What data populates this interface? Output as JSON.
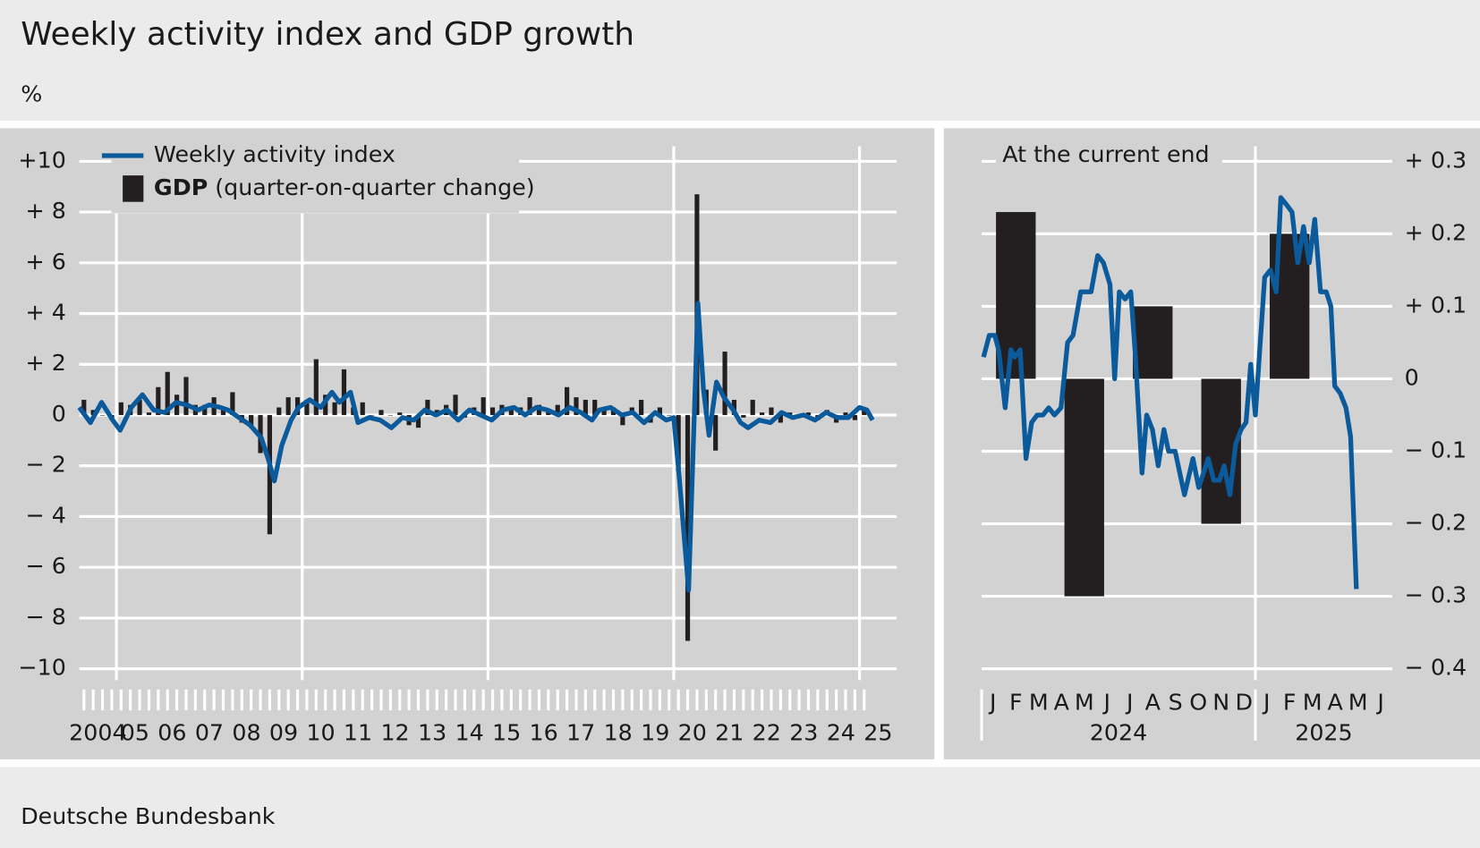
{
  "title": "Weekly activity index and GDP growth",
  "unit": "%",
  "source": "Deutsche Bundesbank",
  "chart_data": [
    {
      "type": "combo",
      "y_axis_side": "left",
      "legend": "top-left",
      "xlim": [
        2004,
        2026
      ],
      "ylim": [
        -10,
        10
      ],
      "xticks": [
        {
          "value": 2004.5,
          "label": "2004"
        },
        {
          "value": 2005.5,
          "label": "05"
        },
        {
          "value": 2006.5,
          "label": "06"
        },
        {
          "value": 2007.5,
          "label": "07"
        },
        {
          "value": 2008.5,
          "label": "08"
        },
        {
          "value": 2009.5,
          "label": "09"
        },
        {
          "value": 2010.5,
          "label": "10"
        },
        {
          "value": 2011.5,
          "label": "11"
        },
        {
          "value": 2012.5,
          "label": "12"
        },
        {
          "value": 2013.5,
          "label": "13"
        },
        {
          "value": 2014.5,
          "label": "14"
        },
        {
          "value": 2015.5,
          "label": "15"
        },
        {
          "value": 2016.5,
          "label": "16"
        },
        {
          "value": 2017.5,
          "label": "17"
        },
        {
          "value": 2018.5,
          "label": "18"
        },
        {
          "value": 2019.5,
          "label": "19"
        },
        {
          "value": 2020.5,
          "label": "20"
        },
        {
          "value": 2021.5,
          "label": "21"
        },
        {
          "value": 2022.5,
          "label": "22"
        },
        {
          "value": 2023.5,
          "label": "23"
        },
        {
          "value": 2024.5,
          "label": "24"
        },
        {
          "value": 2025.5,
          "label": "25"
        }
      ],
      "xgrid": [
        2005,
        2010,
        2015,
        2020,
        2025
      ],
      "yticks": [
        {
          "value": 10,
          "label": "+10"
        },
        {
          "value": 8,
          "label": "+ 8"
        },
        {
          "value": 6,
          "label": "+ 6"
        },
        {
          "value": 4,
          "label": "+ 4"
        },
        {
          "value": 2,
          "label": "+ 2"
        },
        0,
        {
          "value": -2,
          "label": "− 2"
        },
        {
          "value": -4,
          "label": "− 4"
        },
        {
          "value": -6,
          "label": "− 6"
        },
        {
          "value": -8,
          "label": "− 8"
        },
        {
          "value": -10,
          "label": "−10"
        }
      ],
      "grid": true,
      "series": [
        {
          "name": "GDP (quarter-on-quarter change)",
          "type": "bar",
          "color": "#231f20",
          "x": [
            2004.125,
            2004.375,
            2004.625,
            2004.875,
            2005.125,
            2005.375,
            2005.625,
            2005.875,
            2006.125,
            2006.375,
            2006.625,
            2006.875,
            2007.125,
            2007.375,
            2007.625,
            2007.875,
            2008.125,
            2008.375,
            2008.625,
            2008.875,
            2009.125,
            2009.375,
            2009.625,
            2009.875,
            2010.125,
            2010.375,
            2010.625,
            2010.875,
            2011.125,
            2011.375,
            2011.625,
            2011.875,
            2012.125,
            2012.375,
            2012.625,
            2012.875,
            2013.125,
            2013.375,
            2013.625,
            2013.875,
            2014.125,
            2014.375,
            2014.625,
            2014.875,
            2015.125,
            2015.375,
            2015.625,
            2015.875,
            2016.125,
            2016.375,
            2016.625,
            2016.875,
            2017.125,
            2017.375,
            2017.625,
            2017.875,
            2018.125,
            2018.375,
            2018.625,
            2018.875,
            2019.125,
            2019.375,
            2019.625,
            2019.875,
            2020.125,
            2020.375,
            2020.625,
            2020.875,
            2021.125,
            2021.375,
            2021.625,
            2021.875,
            2022.125,
            2022.375,
            2022.625,
            2022.875,
            2023.125,
            2023.375,
            2023.625,
            2023.875,
            2024.125,
            2024.375,
            2024.625,
            2024.875,
            2025.125
          ],
          "values": [
            0.6,
            0.2,
            0.0,
            -0.2,
            0.5,
            0.4,
            0.6,
            0.1,
            1.1,
            1.7,
            0.8,
            1.5,
            0.4,
            0.4,
            0.7,
            0.3,
            0.9,
            -0.3,
            -0.5,
            -1.5,
            -4.7,
            0.3,
            0.7,
            0.7,
            0.6,
            2.2,
            0.8,
            0.5,
            1.8,
            0.3,
            0.5,
            0.0,
            0.2,
            0.0,
            0.1,
            -0.4,
            -0.5,
            0.6,
            0.2,
            0.4,
            0.8,
            -0.1,
            0.3,
            0.7,
            0.3,
            0.4,
            0.3,
            0.3,
            0.7,
            0.4,
            0.2,
            0.4,
            1.1,
            0.7,
            0.6,
            0.6,
            0.3,
            0.3,
            -0.4,
            0.3,
            0.6,
            -0.3,
            0.3,
            0.0,
            -2.2,
            -8.9,
            8.7,
            1.0,
            -1.4,
            2.5,
            0.6,
            -0.1,
            0.6,
            0.1,
            0.3,
            -0.3,
            0.1,
            0.0,
            0.1,
            -0.2,
            0.2,
            -0.3,
            0.1,
            -0.2,
            0.3
          ]
        },
        {
          "name": "Weekly activity index",
          "type": "line",
          "color": "#0a5a9c",
          "x": [
            2004.0,
            2004.3,
            2004.6,
            2004.9,
            2005.1,
            2005.4,
            2005.7,
            2006.0,
            2006.3,
            2006.6,
            2006.9,
            2007.2,
            2007.5,
            2007.8,
            2008.0,
            2008.3,
            2008.6,
            2008.9,
            2009.1,
            2009.25,
            2009.45,
            2009.7,
            2009.9,
            2010.2,
            2010.5,
            2010.8,
            2011.0,
            2011.3,
            2011.5,
            2011.8,
            2012.1,
            2012.4,
            2012.7,
            2013.0,
            2013.3,
            2013.6,
            2013.9,
            2014.2,
            2014.5,
            2014.8,
            2015.1,
            2015.4,
            2015.7,
            2016.0,
            2016.3,
            2016.6,
            2016.9,
            2017.2,
            2017.5,
            2017.8,
            2018.0,
            2018.3,
            2018.6,
            2018.9,
            2019.2,
            2019.5,
            2019.8,
            2020.0,
            2020.15,
            2020.4,
            2020.65,
            2020.8,
            2020.95,
            2021.15,
            2021.35,
            2021.6,
            2021.8,
            2022.0,
            2022.3,
            2022.6,
            2022.9,
            2023.2,
            2023.5,
            2023.8,
            2024.1,
            2024.4,
            2024.7,
            2025.0,
            2025.2,
            2025.35
          ],
          "values": [
            0.3,
            -0.3,
            0.5,
            -0.2,
            -0.6,
            0.3,
            0.8,
            0.2,
            0.1,
            0.5,
            0.4,
            0.2,
            0.4,
            0.3,
            0.2,
            -0.1,
            -0.4,
            -0.9,
            -1.8,
            -2.6,
            -1.2,
            -0.2,
            0.3,
            0.6,
            0.3,
            0.9,
            0.5,
            0.9,
            -0.3,
            -0.1,
            -0.2,
            -0.5,
            -0.1,
            -0.2,
            0.2,
            0.0,
            0.2,
            -0.2,
            0.2,
            0.0,
            -0.2,
            0.2,
            0.3,
            0.0,
            0.3,
            0.2,
            0.0,
            0.3,
            0.1,
            -0.2,
            0.2,
            0.3,
            0.0,
            0.1,
            -0.3,
            0.1,
            -0.2,
            -0.1,
            -2.5,
            -6.9,
            4.4,
            1.0,
            -0.8,
            1.3,
            0.7,
            0.2,
            -0.3,
            -0.5,
            -0.2,
            -0.3,
            0.1,
            -0.1,
            0.0,
            -0.2,
            0.1,
            -0.1,
            -0.1,
            0.3,
            0.2,
            -0.2
          ]
        }
      ]
    },
    {
      "type": "combo",
      "y_axis_side": "right",
      "title": "At the current end",
      "xlim": [
        2024,
        2025.5
      ],
      "ylim": [
        -0.4,
        0.3
      ],
      "xticks": [
        {
          "value": 2024.0417,
          "label": "J"
        },
        {
          "value": 2024.125,
          "label": "F"
        },
        {
          "value": 2024.2083,
          "label": "M"
        },
        {
          "value": 2024.2917,
          "label": "A"
        },
        {
          "value": 2024.375,
          "label": "M"
        },
        {
          "value": 2024.4583,
          "label": "J"
        },
        {
          "value": 2024.5417,
          "label": "J"
        },
        {
          "value": 2024.625,
          "label": "A"
        },
        {
          "value": 2024.7083,
          "label": "S"
        },
        {
          "value": 2024.7917,
          "label": "O"
        },
        {
          "value": 2024.875,
          "label": "N"
        },
        {
          "value": 2024.9583,
          "label": "D"
        },
        {
          "value": 2025.0417,
          "label": "J"
        },
        {
          "value": 2025.125,
          "label": "F"
        },
        {
          "value": 2025.2083,
          "label": "M"
        },
        {
          "value": 2025.2917,
          "label": "A"
        },
        {
          "value": 2025.375,
          "label": "M"
        },
        {
          "value": 2025.4583,
          "label": "J"
        }
      ],
      "xgroups": [
        {
          "value": 2024.5,
          "label": "2024"
        },
        {
          "value": 2025.25,
          "label": "2025"
        }
      ],
      "xgrid": [
        2025
      ],
      "yticks": [
        {
          "value": 0.3,
          "label": "+ 0.3"
        },
        {
          "value": 0.2,
          "label": "+ 0.2"
        },
        {
          "value": 0.1,
          "label": "+ 0.1"
        },
        0,
        {
          "value": -0.1,
          "label": "− 0.1"
        },
        {
          "value": -0.2,
          "label": "− 0.2"
        },
        {
          "value": -0.3,
          "label": "− 0.3"
        },
        {
          "value": -0.4,
          "label": "− 0.4"
        }
      ],
      "grid": true,
      "series": [
        {
          "name": "GDP (quarter-on-quarter change)",
          "type": "bar",
          "color": "#231f20",
          "x": [
            2024.125,
            2024.375,
            2024.625,
            2024.875,
            2025.125
          ],
          "values": [
            0.23,
            -0.3,
            0.1,
            -0.2,
            0.2
          ]
        },
        {
          "name": "Weekly activity index",
          "type": "line",
          "color": "#0a5a9c",
          "x": [
            2024.007,
            2024.028,
            2024.048,
            2024.062,
            2024.086,
            2024.107,
            2024.121,
            2024.141,
            2024.162,
            2024.183,
            2024.203,
            2024.224,
            2024.245,
            2024.266,
            2024.29,
            2024.314,
            2024.334,
            2024.362,
            2024.4,
            2024.424,
            2024.445,
            2024.469,
            2024.486,
            2024.503,
            2024.524,
            2024.545,
            2024.562,
            2024.586,
            2024.603,
            2024.624,
            2024.645,
            2024.666,
            2024.683,
            2024.707,
            2024.741,
            2024.772,
            2024.793,
            2024.828,
            2024.848,
            2024.869,
            2024.886,
            2024.907,
            2024.928,
            2024.948,
            2024.966,
            2024.983,
            2025.0,
            2025.034,
            2025.055,
            2025.076,
            2025.093,
            2025.114,
            2025.134,
            2025.155,
            2025.176,
            2025.197,
            2025.217,
            2025.238,
            2025.259,
            2025.276,
            2025.29,
            2025.31,
            2025.331,
            2025.348,
            2025.369
          ],
          "values": [
            0.03,
            0.06,
            0.06,
            0.04,
            -0.04,
            0.04,
            0.03,
            0.04,
            -0.11,
            -0.06,
            -0.05,
            -0.05,
            -0.04,
            -0.05,
            -0.04,
            0.05,
            0.06,
            0.12,
            0.12,
            0.17,
            0.16,
            0.13,
            0.0,
            0.12,
            0.11,
            0.12,
            0.03,
            -0.13,
            -0.05,
            -0.07,
            -0.12,
            -0.07,
            -0.1,
            -0.1,
            -0.16,
            -0.11,
            -0.15,
            -0.11,
            -0.14,
            -0.14,
            -0.12,
            -0.16,
            -0.09,
            -0.07,
            -0.06,
            0.02,
            -0.05,
            0.14,
            0.15,
            0.12,
            0.25,
            0.24,
            0.23,
            0.16,
            0.21,
            0.16,
            0.22,
            0.12,
            0.12,
            0.1,
            -0.01,
            -0.02,
            -0.04,
            -0.08,
            -0.29
          ]
        }
      ]
    }
  ]
}
